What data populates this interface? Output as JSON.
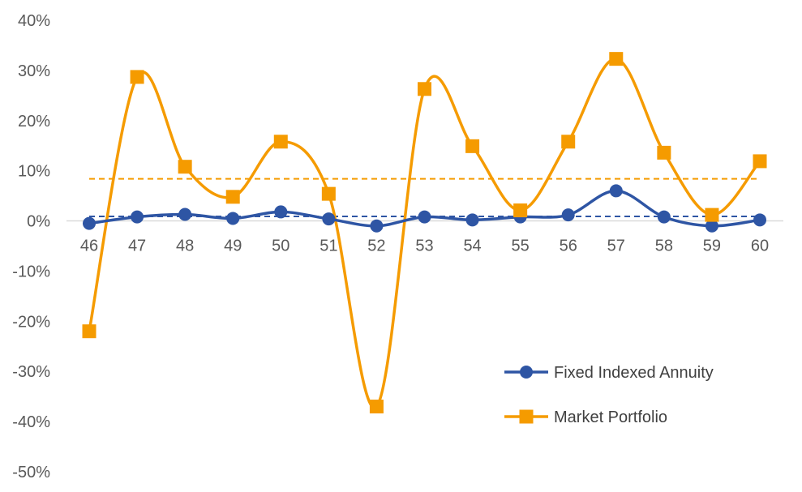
{
  "chart_data": {
    "type": "line",
    "smooth": true,
    "x": [
      "46",
      "47",
      "48",
      "49",
      "50",
      "51",
      "52",
      "53",
      "54",
      "55",
      "56",
      "57",
      "58",
      "59",
      "60"
    ],
    "ylim": [
      -50,
      40
    ],
    "yticks": [
      40,
      30,
      20,
      10,
      0,
      -10,
      -20,
      -30,
      -40,
      -50
    ],
    "ytick_labels": [
      "40%",
      "30%",
      "20%",
      "10%",
      "0%",
      "-10%",
      "-20%",
      "-30%",
      "-40%",
      "-50%"
    ],
    "grid": false,
    "legend_position": "bottom-right",
    "series": [
      {
        "name": "Fixed Indexed Annuity",
        "color": "#2E55A4",
        "marker": "circle",
        "values": [
          -0.5,
          0.8,
          1.3,
          0.5,
          1.8,
          0.4,
          -1.0,
          0.8,
          0.2,
          0.8,
          1.2,
          6.0,
          0.8,
          -1.0,
          0.2
        ],
        "average": 0.9
      },
      {
        "name": "Market Portfolio",
        "color": "#F59B00",
        "marker": "square",
        "values": [
          -22.0,
          28.7,
          10.8,
          4.8,
          15.8,
          5.4,
          -37.0,
          26.3,
          14.9,
          2.1,
          15.8,
          32.3,
          13.6,
          1.2,
          11.9
        ],
        "average": 8.4
      }
    ]
  }
}
